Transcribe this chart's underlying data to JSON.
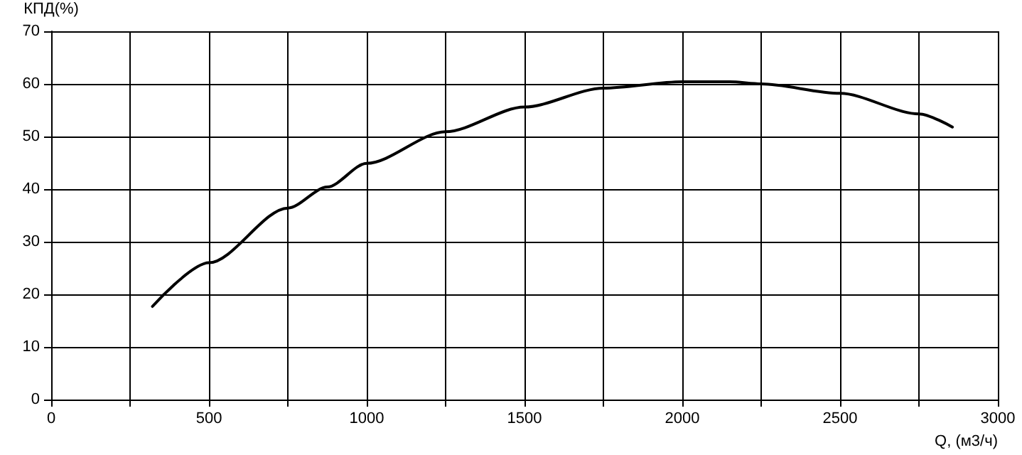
{
  "chart_data": {
    "type": "line",
    "ylabel": "КПД(%)",
    "xlabel": "Q, (м3/ч)",
    "x": [
      321,
      500,
      750,
      875,
      1000,
      1250,
      1500,
      1750,
      2000,
      2150,
      2250,
      2500,
      2750,
      2856
    ],
    "series": [
      {
        "color": "#000000",
        "values": [
          17.7,
          26.0,
          36.4,
          40.4,
          44.9,
          50.9,
          55.6,
          59.2,
          60.4,
          60.4,
          60.0,
          58.2,
          54.3,
          51.8
        ]
      }
    ],
    "xlim": [
      0,
      3000
    ],
    "ylim": [
      0,
      70
    ],
    "xticks": [
      0,
      {
        "value": 250,
        "label": null
      },
      500,
      {
        "value": 750,
        "label": null
      },
      1000,
      {
        "value": 1250,
        "label": null
      },
      1500,
      {
        "value": 1750,
        "label": null
      },
      2000,
      {
        "value": 2250,
        "label": null
      },
      2500,
      {
        "value": 2750,
        "label": null
      },
      3000
    ],
    "yticks": [
      0,
      10,
      20,
      30,
      40,
      50,
      60,
      70
    ],
    "grid": true,
    "marker": "none",
    "line_style": "solid"
  }
}
